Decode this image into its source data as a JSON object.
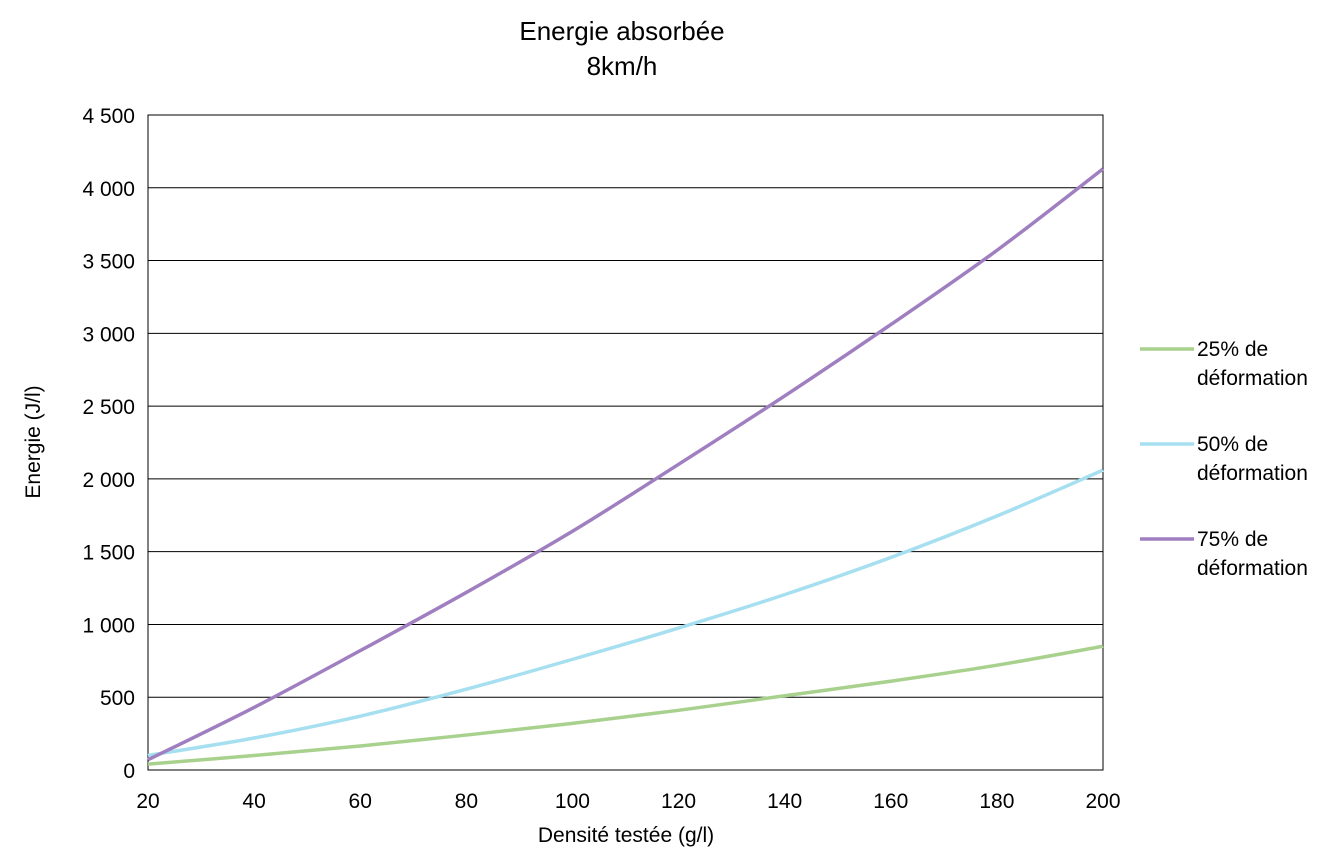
{
  "chart_data": {
    "type": "line",
    "title": "Energie absorbée",
    "subtitle": "8km/h",
    "xlabel": "Densité testée (g/l)",
    "ylabel": "Energie (J/l)",
    "xlim": [
      20,
      200
    ],
    "ylim": [
      0,
      4500
    ],
    "x_ticks": [
      20,
      40,
      60,
      80,
      100,
      120,
      140,
      160,
      180,
      200
    ],
    "x_tick_labels": [
      "20",
      "40",
      "60",
      "80",
      "100",
      "120",
      "140",
      "160",
      "180",
      "200"
    ],
    "y_ticks": [
      0,
      500,
      1000,
      1500,
      2000,
      2500,
      3000,
      3500,
      4000,
      4500
    ],
    "y_tick_labels": [
      "0",
      "500",
      "1 000",
      "1 500",
      "2 000",
      "2 500",
      "3 000",
      "3 500",
      "4 000",
      "4 500"
    ],
    "grid": true,
    "legend_position": "right",
    "x": [
      20,
      40,
      60,
      80,
      100,
      120,
      140,
      160,
      180,
      200
    ],
    "series": [
      {
        "name_lines": [
          "25% de",
          "déformation"
        ],
        "color": "#a9d18e",
        "values": [
          40,
          100,
          165,
          240,
          320,
          410,
          510,
          610,
          720,
          850
        ]
      },
      {
        "name_lines": [
          "50% de",
          "déformation"
        ],
        "color": "#a5dff0",
        "values": [
          100,
          220,
          370,
          555,
          760,
          975,
          1205,
          1460,
          1745,
          2060
        ]
      },
      {
        "name_lines": [
          "75% de",
          "déformation"
        ],
        "color": "#a07fc0",
        "values": [
          70,
          430,
          820,
          1220,
          1640,
          2100,
          2570,
          3060,
          3570,
          4130
        ]
      }
    ]
  }
}
